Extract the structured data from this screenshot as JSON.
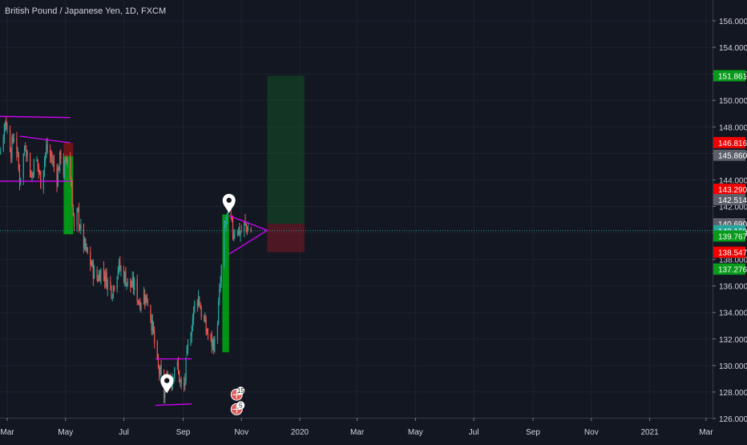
{
  "colors": {
    "background": "#131722",
    "grid": "#1e222d",
    "text": "#d1d4dc",
    "up": "#26a69a",
    "down": "#ef5350",
    "pattern_line": "#d500f9",
    "current_price_line": "#26a69a",
    "badge_green": "#089a1b",
    "badge_red": "#f00000",
    "badge_gray": "#5d606b",
    "badge_teal": "#26a69a"
  },
  "chart_data": {
    "type": "candlestick",
    "title": "British Pound / Japanese Yen, 1D, FXCM",
    "symbol": "GBPJPY",
    "interval": "1D",
    "source": "FXCM",
    "ylim": [
      126.0,
      157.0
    ],
    "y_ticks": [
      "126.000",
      "128.000",
      "130.000",
      "132.000",
      "134.000",
      "136.000",
      "138.000",
      "140.000",
      "142.000",
      "144.000",
      "146.000",
      "148.000",
      "150.000",
      "152.000",
      "154.000",
      "156.000"
    ],
    "x_ticks": [
      "Mar",
      "May",
      "Jul",
      "Sep",
      "Nov",
      "2020",
      "Mar",
      "May",
      "Jul",
      "Sep",
      "Nov",
      "2021",
      "Mar"
    ],
    "x_tick_dates": [
      "2019-03-01",
      "2019-05-01",
      "2019-07-01",
      "2019-09-01",
      "2019-11-01",
      "2020-01-01",
      "2020-03-01",
      "2020-05-01",
      "2020-07-01",
      "2020-09-01",
      "2020-11-01",
      "2021-01-01",
      "2021-03-01"
    ],
    "price_badges": [
      {
        "value": "151.861",
        "color": "#089a1b"
      },
      {
        "value": "146.816",
        "color": "#f00000"
      },
      {
        "value": "145.860",
        "color": "#5d606b"
      },
      {
        "value": "143.290",
        "color": "#f00000"
      },
      {
        "value": "142.514",
        "color": "#5d606b"
      },
      {
        "value": "140.690",
        "color": "#5d606b"
      },
      {
        "value": "140.168",
        "color": "#26a69a"
      },
      {
        "value": "139.767",
        "color": "#089a1b"
      },
      {
        "value": "138.547",
        "color": "#f00000"
      },
      {
        "value": "137.276",
        "color": "#089a1b"
      }
    ],
    "current_price": 140.168,
    "price_path": [
      [
        "2019-02-13",
        144.5
      ],
      [
        "2019-02-18",
        147.5
      ],
      [
        "2019-02-22",
        146.2
      ],
      [
        "2019-02-27",
        148.6
      ],
      [
        "2019-03-05",
        146.2
      ],
      [
        "2019-03-09",
        147.8
      ],
      [
        "2019-03-14",
        144.0
      ],
      [
        "2019-03-20",
        146.8
      ],
      [
        "2019-03-26",
        144.2
      ],
      [
        "2019-03-31",
        145.8
      ],
      [
        "2019-04-05",
        143.9
      ],
      [
        "2019-04-11",
        146.4
      ],
      [
        "2019-04-17",
        145.5
      ],
      [
        "2019-04-22",
        144.2
      ],
      [
        "2019-04-26",
        146.0
      ],
      [
        "2019-04-29",
        144.6
      ],
      [
        "2019-05-03",
        145.8
      ],
      [
        "2019-05-07",
        143.6
      ],
      [
        "2019-05-10",
        140.2
      ],
      [
        "2019-05-14",
        141.5
      ],
      [
        "2019-05-18",
        139.6
      ],
      [
        "2019-05-23",
        138.5
      ],
      [
        "2019-05-28",
        137.6
      ],
      [
        "2019-06-02",
        136.4
      ],
      [
        "2019-06-08",
        137.3
      ],
      [
        "2019-06-13",
        136.4
      ],
      [
        "2019-06-19",
        135.7
      ],
      [
        "2019-06-25",
        137.5
      ],
      [
        "2019-07-01",
        136.8
      ],
      [
        "2019-07-07",
        136.0
      ],
      [
        "2019-07-12",
        136.0
      ],
      [
        "2019-07-17",
        134.8
      ],
      [
        "2019-07-22",
        135.3
      ],
      [
        "2019-07-27",
        134.8
      ],
      [
        "2019-08-01",
        132.3
      ],
      [
        "2019-08-05",
        129.9
      ],
      [
        "2019-08-08",
        129.3
      ],
      [
        "2019-08-12",
        127.8
      ],
      [
        "2019-08-16",
        129.4
      ],
      [
        "2019-08-20",
        128.8
      ],
      [
        "2019-08-24",
        130.5
      ],
      [
        "2019-08-28",
        129.1
      ],
      [
        "2019-09-01",
        127.5
      ],
      [
        "2019-09-05",
        130.8
      ],
      [
        "2019-09-09",
        132.6
      ],
      [
        "2019-09-13",
        134.6
      ],
      [
        "2019-09-17",
        135.2
      ],
      [
        "2019-09-21",
        133.6
      ],
      [
        "2019-09-26",
        132.5
      ],
      [
        "2019-09-30",
        131.8
      ],
      [
        "2019-10-04",
        131.6
      ],
      [
        "2019-10-07",
        133.5
      ],
      [
        "2019-10-10",
        136.2
      ],
      [
        "2019-10-13",
        139.5
      ],
      [
        "2019-10-16",
        141.0
      ],
      [
        "2019-10-19",
        141.6
      ],
      [
        "2019-10-23",
        140.0
      ],
      [
        "2019-10-27",
        140.5
      ],
      [
        "2019-10-31",
        140.0
      ],
      [
        "2019-11-04",
        140.6
      ],
      [
        "2019-11-08",
        140.3
      ],
      [
        "2019-11-11",
        140.2
      ]
    ],
    "annotations": {
      "rectangles": [
        {
          "kind": "green",
          "x1": "2019-04-29",
          "x2": "2019-05-09",
          "y1": 145.8,
          "y2": 139.9
        },
        {
          "kind": "red",
          "x1": "2019-04-29",
          "x2": "2019-05-09",
          "y1": 146.8,
          "y2": 145.8
        },
        {
          "kind": "green",
          "x1": "2019-10-12",
          "x2": "2019-10-19",
          "y1": 141.4,
          "y2": 131.0
        },
        {
          "kind": "target",
          "x1": "2019-11-28",
          "x2": "2020-01-06",
          "y1": 151.861,
          "y2": 140.69
        },
        {
          "kind": "stop",
          "x1": "2019-11-28",
          "x2": "2020-01-06",
          "y1": 140.69,
          "y2": 138.547
        }
      ],
      "lines": [
        {
          "x1": "2019-02-13",
          "y1": 148.8,
          "x2": "2019-05-06",
          "y2": 148.7
        },
        {
          "x1": "2019-02-13",
          "y1": 143.9,
          "x2": "2019-05-06",
          "y2": 143.9
        },
        {
          "x1": "2019-03-14",
          "y1": 147.3,
          "x2": "2019-05-06",
          "y2": 146.8
        },
        {
          "x1": "2019-08-03",
          "y1": 130.5,
          "x2": "2019-09-10",
          "y2": 130.5
        },
        {
          "x1": "2019-08-03",
          "y1": 127.0,
          "x2": "2019-09-10",
          "y2": 127.1
        },
        {
          "x1": "2019-10-19",
          "y1": 141.3,
          "x2": "2019-11-28",
          "y2": 140.2
        },
        {
          "x1": "2019-10-19",
          "y1": 138.4,
          "x2": "2019-11-28",
          "y2": 140.2
        }
      ],
      "pins": [
        {
          "date": "2019-10-19",
          "price": 141.5
        },
        {
          "date": "2019-08-15",
          "price": 127.9
        }
      ],
      "events": [
        {
          "date": "2019-10-27",
          "price": 127.8,
          "count": "15"
        },
        {
          "date": "2019-10-27",
          "price": 126.7,
          "count": "5"
        }
      ]
    }
  }
}
